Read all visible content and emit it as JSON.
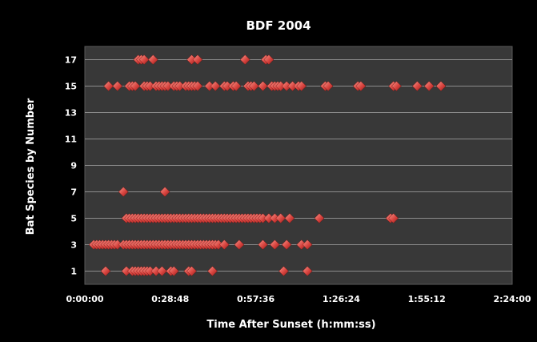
{
  "chart_data": {
    "type": "scatter",
    "title": "BDF 2004",
    "xlabel": "Time After Sunset (h:mm:ss)",
    "ylabel": "Bat Species by Number",
    "x_unit": "h:mm:ss",
    "xlim": [
      "0:00:00",
      "2:24:00"
    ],
    "ylim": [
      0,
      18
    ],
    "x_ticks": [
      "0:00:00",
      "0:28:48",
      "0:57:36",
      "1:26:24",
      "1:55:12",
      "2:24:00"
    ],
    "y_ticks": [
      1,
      3,
      5,
      7,
      9,
      11,
      13,
      15,
      17
    ],
    "grid": "horizontal",
    "legend": "none",
    "colors": {
      "marker": "#d9443f",
      "marker_light": "#f28a80",
      "plot_bg": "#383838",
      "grid": "#a8a8a8",
      "frame": "#000000"
    },
    "series": [
      {
        "points": [
          [
            "0:07:00",
            1
          ],
          [
            "0:14:00",
            1
          ],
          [
            "0:16:00",
            1
          ],
          [
            "0:17:00",
            1
          ],
          [
            "0:18:00",
            1
          ],
          [
            "0:19:00",
            1
          ],
          [
            "0:20:00",
            1
          ],
          [
            "0:21:00",
            1
          ],
          [
            "0:22:00",
            1
          ],
          [
            "0:24:00",
            1
          ],
          [
            "0:26:00",
            1
          ],
          [
            "0:29:00",
            1
          ],
          [
            "0:30:00",
            1
          ],
          [
            "0:35:00",
            1
          ],
          [
            "0:36:00",
            1
          ],
          [
            "0:43:00",
            1
          ],
          [
            "1:07:00",
            1
          ],
          [
            "1:15:00",
            1
          ],
          [
            "0:03:00",
            3
          ],
          [
            "0:04:00",
            3
          ],
          [
            "0:05:00",
            3
          ],
          [
            "0:06:00",
            3
          ],
          [
            "0:07:00",
            3
          ],
          [
            "0:08:00",
            3
          ],
          [
            "0:09:00",
            3
          ],
          [
            "0:10:00",
            3
          ],
          [
            "0:11:00",
            3
          ],
          [
            "0:13:00",
            3
          ],
          [
            "0:14:00",
            3
          ],
          [
            "0:15:00",
            3
          ],
          [
            "0:16:00",
            3
          ],
          [
            "0:17:00",
            3
          ],
          [
            "0:18:00",
            3
          ],
          [
            "0:19:00",
            3
          ],
          [
            "0:20:00",
            3
          ],
          [
            "0:21:00",
            3
          ],
          [
            "0:22:00",
            3
          ],
          [
            "0:23:00",
            3
          ],
          [
            "0:24:00",
            3
          ],
          [
            "0:25:00",
            3
          ],
          [
            "0:26:00",
            3
          ],
          [
            "0:27:00",
            3
          ],
          [
            "0:28:00",
            3
          ],
          [
            "0:29:00",
            3
          ],
          [
            "0:30:00",
            3
          ],
          [
            "0:31:00",
            3
          ],
          [
            "0:32:00",
            3
          ],
          [
            "0:33:00",
            3
          ],
          [
            "0:34:00",
            3
          ],
          [
            "0:35:00",
            3
          ],
          [
            "0:36:00",
            3
          ],
          [
            "0:37:00",
            3
          ],
          [
            "0:38:00",
            3
          ],
          [
            "0:39:00",
            3
          ],
          [
            "0:40:00",
            3
          ],
          [
            "0:41:00",
            3
          ],
          [
            "0:42:00",
            3
          ],
          [
            "0:43:00",
            3
          ],
          [
            "0:44:00",
            3
          ],
          [
            "0:45:00",
            3
          ],
          [
            "0:47:00",
            3
          ],
          [
            "0:52:00",
            3
          ],
          [
            "1:00:00",
            3
          ],
          [
            "1:04:00",
            3
          ],
          [
            "1:08:00",
            3
          ],
          [
            "1:13:00",
            3
          ],
          [
            "1:15:00",
            3
          ],
          [
            "0:14:00",
            5
          ],
          [
            "0:15:00",
            5
          ],
          [
            "0:16:00",
            5
          ],
          [
            "0:17:00",
            5
          ],
          [
            "0:18:00",
            5
          ],
          [
            "0:19:00",
            5
          ],
          [
            "0:20:00",
            5
          ],
          [
            "0:21:00",
            5
          ],
          [
            "0:22:00",
            5
          ],
          [
            "0:23:00",
            5
          ],
          [
            "0:24:00",
            5
          ],
          [
            "0:25:00",
            5
          ],
          [
            "0:26:00",
            5
          ],
          [
            "0:27:00",
            5
          ],
          [
            "0:28:00",
            5
          ],
          [
            "0:29:00",
            5
          ],
          [
            "0:30:00",
            5
          ],
          [
            "0:31:00",
            5
          ],
          [
            "0:32:00",
            5
          ],
          [
            "0:33:00",
            5
          ],
          [
            "0:34:00",
            5
          ],
          [
            "0:35:00",
            5
          ],
          [
            "0:36:00",
            5
          ],
          [
            "0:37:00",
            5
          ],
          [
            "0:38:00",
            5
          ],
          [
            "0:39:00",
            5
          ],
          [
            "0:40:00",
            5
          ],
          [
            "0:41:00",
            5
          ],
          [
            "0:42:00",
            5
          ],
          [
            "0:43:00",
            5
          ],
          [
            "0:44:00",
            5
          ],
          [
            "0:45:00",
            5
          ],
          [
            "0:46:00",
            5
          ],
          [
            "0:47:00",
            5
          ],
          [
            "0:48:00",
            5
          ],
          [
            "0:49:00",
            5
          ],
          [
            "0:50:00",
            5
          ],
          [
            "0:51:00",
            5
          ],
          [
            "0:52:00",
            5
          ],
          [
            "0:53:00",
            5
          ],
          [
            "0:54:00",
            5
          ],
          [
            "0:55:00",
            5
          ],
          [
            "0:56:00",
            5
          ],
          [
            "0:57:00",
            5
          ],
          [
            "0:58:00",
            5
          ],
          [
            "0:59:00",
            5
          ],
          [
            "1:00:00",
            5
          ],
          [
            "1:02:00",
            5
          ],
          [
            "1:04:00",
            5
          ],
          [
            "1:06:00",
            5
          ],
          [
            "1:09:00",
            5
          ],
          [
            "1:19:00",
            5
          ],
          [
            "1:43:00",
            5
          ],
          [
            "1:44:00",
            5
          ],
          [
            "0:13:00",
            7
          ],
          [
            "0:27:00",
            7
          ],
          [
            "0:08:00",
            15
          ],
          [
            "0:11:00",
            15
          ],
          [
            "0:15:00",
            15
          ],
          [
            "0:16:00",
            15
          ],
          [
            "0:17:00",
            15
          ],
          [
            "0:20:00",
            15
          ],
          [
            "0:21:00",
            15
          ],
          [
            "0:22:00",
            15
          ],
          [
            "0:24:00",
            15
          ],
          [
            "0:25:00",
            15
          ],
          [
            "0:26:00",
            15
          ],
          [
            "0:27:00",
            15
          ],
          [
            "0:28:00",
            15
          ],
          [
            "0:30:00",
            15
          ],
          [
            "0:31:00",
            15
          ],
          [
            "0:32:00",
            15
          ],
          [
            "0:34:00",
            15
          ],
          [
            "0:35:00",
            15
          ],
          [
            "0:36:00",
            15
          ],
          [
            "0:37:00",
            15
          ],
          [
            "0:38:00",
            15
          ],
          [
            "0:42:00",
            15
          ],
          [
            "0:44:00",
            15
          ],
          [
            "0:47:00",
            15
          ],
          [
            "0:48:00",
            15
          ],
          [
            "0:50:00",
            15
          ],
          [
            "0:51:00",
            15
          ],
          [
            "0:55:00",
            15
          ],
          [
            "0:56:00",
            15
          ],
          [
            "0:57:00",
            15
          ],
          [
            "1:00:00",
            15
          ],
          [
            "1:03:00",
            15
          ],
          [
            "1:04:00",
            15
          ],
          [
            "1:05:00",
            15
          ],
          [
            "1:06:00",
            15
          ],
          [
            "1:08:00",
            15
          ],
          [
            "1:10:00",
            15
          ],
          [
            "1:12:00",
            15
          ],
          [
            "1:13:00",
            15
          ],
          [
            "1:21:00",
            15
          ],
          [
            "1:22:00",
            15
          ],
          [
            "1:32:00",
            15
          ],
          [
            "1:33:00",
            15
          ],
          [
            "1:44:00",
            15
          ],
          [
            "1:45:00",
            15
          ],
          [
            "1:52:00",
            15
          ],
          [
            "1:56:00",
            15
          ],
          [
            "2:00:00",
            15
          ],
          [
            "0:18:00",
            17
          ],
          [
            "0:19:00",
            17
          ],
          [
            "0:20:00",
            17
          ],
          [
            "0:23:00",
            17
          ],
          [
            "0:36:00",
            17
          ],
          [
            "0:38:00",
            17
          ],
          [
            "0:54:00",
            17
          ],
          [
            "1:01:00",
            17
          ],
          [
            "1:02:00",
            17
          ]
        ]
      }
    ]
  }
}
